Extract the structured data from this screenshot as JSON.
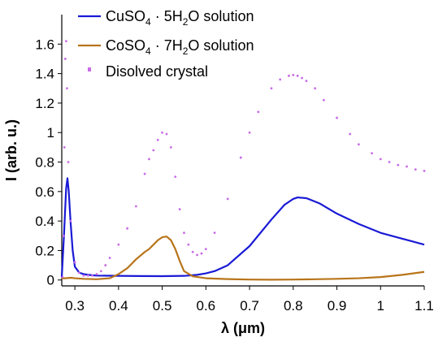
{
  "chart_data": {
    "type": "line",
    "xlabel": "λ (μm)",
    "ylabel": "I (arb. u.)",
    "xlim": [
      0.27,
      1.1
    ],
    "ylim": [
      -0.04,
      1.8
    ],
    "xticks": [
      0.3,
      0.4,
      0.5,
      0.6,
      0.7,
      0.8,
      0.9,
      1.0,
      1.1
    ],
    "xtick_labels": [
      "0.3",
      "0.4",
      "0.5",
      "0.6",
      "0.7",
      "0.8",
      "0.9",
      "1",
      "1.1"
    ],
    "yticks": [
      0,
      0.2,
      0.4,
      0.6,
      0.8,
      1.0,
      1.2,
      1.4,
      1.6
    ],
    "ytick_labels": [
      "0",
      "0.2",
      "0.4",
      "0.6",
      "0.8",
      "1",
      "1.2",
      "1.4",
      "1.6"
    ],
    "grid": false,
    "legend_position": "top-left",
    "series": [
      {
        "name_main": "CuSO",
        "name_sub1": "4",
        "name_mid": " · 5H",
        "name_sub2": "2",
        "name_end": "O solution",
        "color": "#1a1ad6",
        "style": "line",
        "x": [
          0.27,
          0.275,
          0.28,
          0.283,
          0.286,
          0.29,
          0.295,
          0.3,
          0.31,
          0.32,
          0.33,
          0.35,
          0.4,
          0.45,
          0.5,
          0.55,
          0.58,
          0.6,
          0.62,
          0.65,
          0.7,
          0.75,
          0.78,
          0.8,
          0.81,
          0.83,
          0.86,
          0.9,
          0.95,
          1.0,
          1.05,
          1.1
        ],
        "y": [
          0.02,
          0.3,
          0.62,
          0.69,
          0.6,
          0.4,
          0.2,
          0.09,
          0.05,
          0.04,
          0.035,
          0.03,
          0.028,
          0.027,
          0.026,
          0.028,
          0.035,
          0.045,
          0.06,
          0.1,
          0.23,
          0.41,
          0.51,
          0.55,
          0.56,
          0.555,
          0.52,
          0.45,
          0.38,
          0.32,
          0.28,
          0.24
        ]
      },
      {
        "name_main": "CoSO",
        "name_sub1": "4",
        "name_mid": " · 7H",
        "name_sub2": "2",
        "name_end": "O solution",
        "color": "#b8741a",
        "style": "line",
        "x": [
          0.27,
          0.29,
          0.3,
          0.32,
          0.35,
          0.38,
          0.4,
          0.42,
          0.44,
          0.46,
          0.47,
          0.48,
          0.49,
          0.5,
          0.51,
          0.52,
          0.53,
          0.54,
          0.55,
          0.57,
          0.6,
          0.65,
          0.7,
          0.75,
          0.8,
          0.85,
          0.9,
          0.95,
          1.0,
          1.05,
          1.1
        ],
        "y": [
          0.01,
          0.015,
          0.012,
          0.008,
          0.005,
          0.012,
          0.04,
          0.08,
          0.14,
          0.19,
          0.21,
          0.24,
          0.27,
          0.29,
          0.295,
          0.27,
          0.21,
          0.13,
          0.06,
          0.025,
          0.012,
          0.006,
          0.003,
          0.002,
          0.003,
          0.005,
          0.008,
          0.012,
          0.02,
          0.035,
          0.055
        ]
      },
      {
        "name_main": "Disolved crystal",
        "color": "#c86be6",
        "style": "dots",
        "x": [
          0.272,
          0.274,
          0.276,
          0.278,
          0.28,
          0.282,
          0.285,
          0.29,
          0.3,
          0.31,
          0.32,
          0.33,
          0.34,
          0.35,
          0.36,
          0.37,
          0.38,
          0.4,
          0.42,
          0.44,
          0.46,
          0.47,
          0.48,
          0.49,
          0.5,
          0.51,
          0.52,
          0.53,
          0.54,
          0.55,
          0.56,
          0.57,
          0.58,
          0.59,
          0.6,
          0.62,
          0.65,
          0.68,
          0.7,
          0.72,
          0.75,
          0.77,
          0.79,
          0.8,
          0.81,
          0.82,
          0.83,
          0.85,
          0.87,
          0.9,
          0.93,
          0.95,
          0.98,
          1.0,
          1.02,
          1.04,
          1.06,
          1.08,
          1.1
        ],
        "y": [
          0.02,
          0.3,
          0.9,
          1.5,
          1.62,
          1.3,
          0.8,
          0.4,
          0.12,
          0.05,
          0.03,
          0.03,
          0.03,
          0.04,
          0.06,
          0.1,
          0.15,
          0.24,
          0.35,
          0.5,
          0.72,
          0.82,
          0.88,
          0.95,
          1.0,
          0.99,
          0.9,
          0.7,
          0.48,
          0.32,
          0.24,
          0.19,
          0.17,
          0.18,
          0.21,
          0.32,
          0.55,
          0.83,
          1.0,
          1.14,
          1.3,
          1.36,
          1.385,
          1.39,
          1.385,
          1.37,
          1.35,
          1.3,
          1.22,
          1.1,
          0.99,
          0.92,
          0.86,
          0.82,
          0.8,
          0.78,
          0.77,
          0.75,
          0.74
        ]
      }
    ]
  }
}
